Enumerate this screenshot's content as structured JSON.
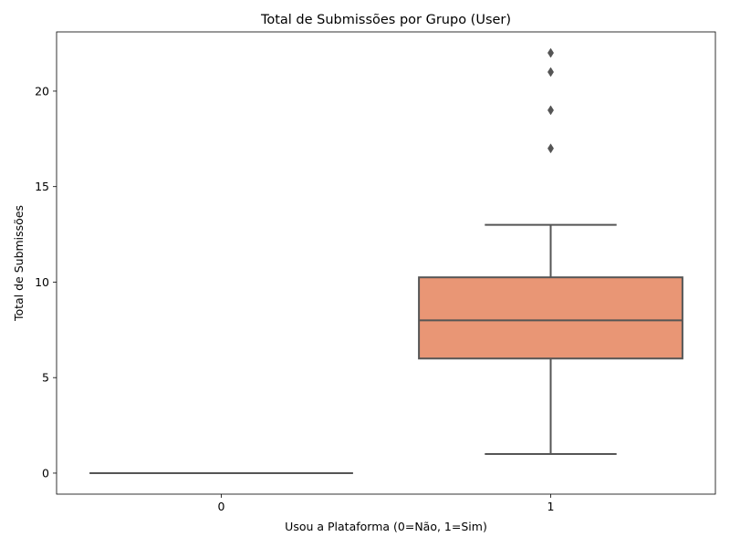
{
  "chart_data": {
    "type": "box",
    "title": "Total de Submissões por Grupo (User)",
    "xlabel": "Usou a Plataforma (0=Não, 1=Sim)",
    "ylabel": "Total de Submissões",
    "categories": [
      "0",
      "1"
    ],
    "ylim": [
      -1.1,
      23.1
    ],
    "yticks": [
      0,
      5,
      10,
      15,
      20
    ],
    "grid": false,
    "boxes": [
      {
        "category": "0",
        "whisker_low": 0,
        "q1": 0,
        "median": 0,
        "q3": 0,
        "whisker_high": 0,
        "outliers": [],
        "color": "#66c2a5"
      },
      {
        "category": "1",
        "whisker_low": 1,
        "q1": 6,
        "median": 8,
        "q3": 10.25,
        "whisker_high": 13,
        "outliers": [
          17,
          19,
          21,
          22
        ],
        "color": "#e99675"
      }
    ],
    "line_color": "#555555"
  }
}
